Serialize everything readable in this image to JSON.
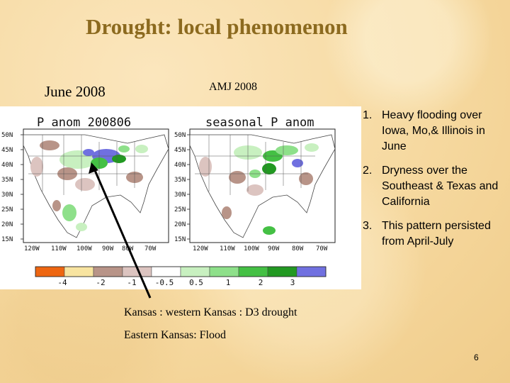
{
  "slide": {
    "title": "Drought: local phenomenon",
    "page_number": "6"
  },
  "labels": {
    "june": "June 2008",
    "amj": "AMJ 2008"
  },
  "maps": {
    "left_title": "P anom 200806",
    "right_title": "seasonal P anom",
    "lat_ticks": [
      "50N",
      "45N",
      "40N",
      "35N",
      "30N",
      "25N",
      "20N",
      "15N"
    ],
    "left_lon_ticks": [
      "120W",
      "110W",
      "100W",
      "90W",
      "80W",
      "70W"
    ],
    "right_lon_ticks": [
      "120W",
      "110W",
      "100W",
      "90W",
      "80W",
      "70W"
    ],
    "colorbar": {
      "colors": [
        "#ee6611",
        "#f8e4a0",
        "#b89488",
        "#dcc4c0",
        "#ffffff",
        "#c8f0c0",
        "#8ee08a",
        "#44c044",
        "#229922",
        "#7070e0"
      ],
      "labels": [
        "-4",
        "-2",
        "-1",
        "-0.5",
        "0.5",
        "1",
        "2",
        "3"
      ]
    }
  },
  "list_items": [
    "Heavy flooding over Iowa, Mo,& Illinois in June",
    "Dryness over the Southeast & Texas and California",
    "This pattern persisted from April-July"
  ],
  "notes": {
    "line1": "Kansas : western Kansas : D3 drought",
    "line2": "Eastern Kansas: Flood"
  }
}
